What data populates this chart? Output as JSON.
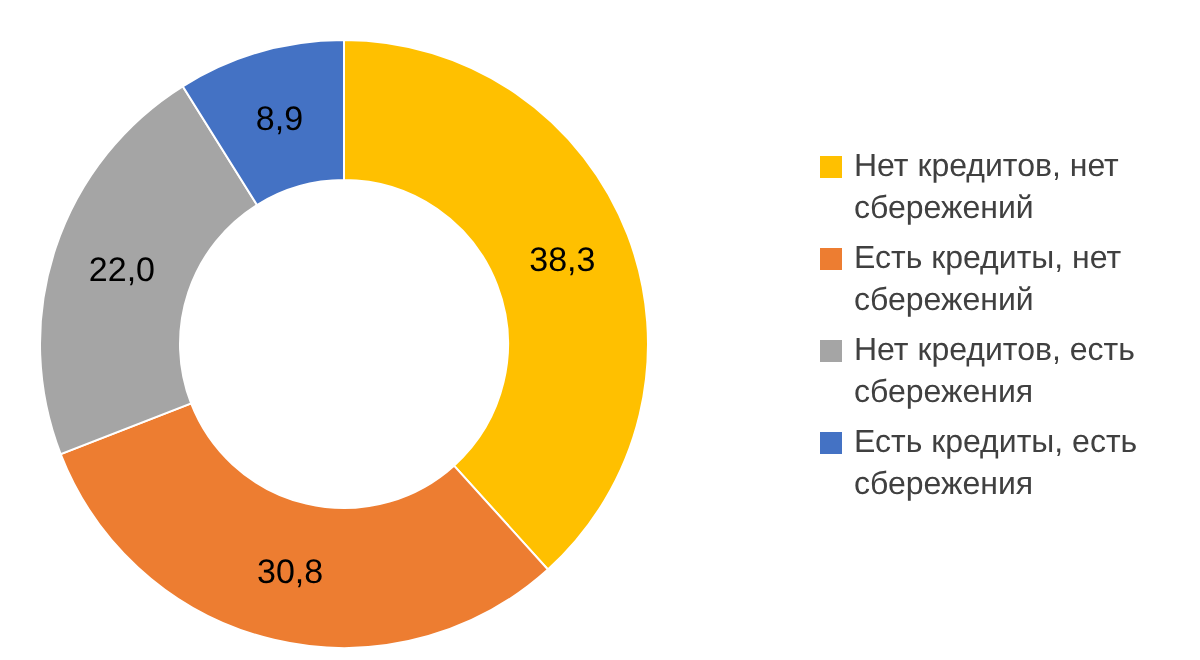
{
  "chart_data": {
    "type": "donut",
    "categories": [
      "Нет кредитов, нет сбережений",
      "Есть кредиты, нет сбережений",
      "Нет кредитов, есть сбережения",
      "Есть кредиты, есть сбережения"
    ],
    "values": [
      38.3,
      30.8,
      22.0,
      8.9
    ],
    "value_labels": [
      "38,3",
      "30,8",
      "22,0",
      "8,9"
    ],
    "colors": [
      "#ffc000",
      "#ed7d31",
      "#a5a5a5",
      "#4472c4"
    ],
    "legend": "right"
  }
}
